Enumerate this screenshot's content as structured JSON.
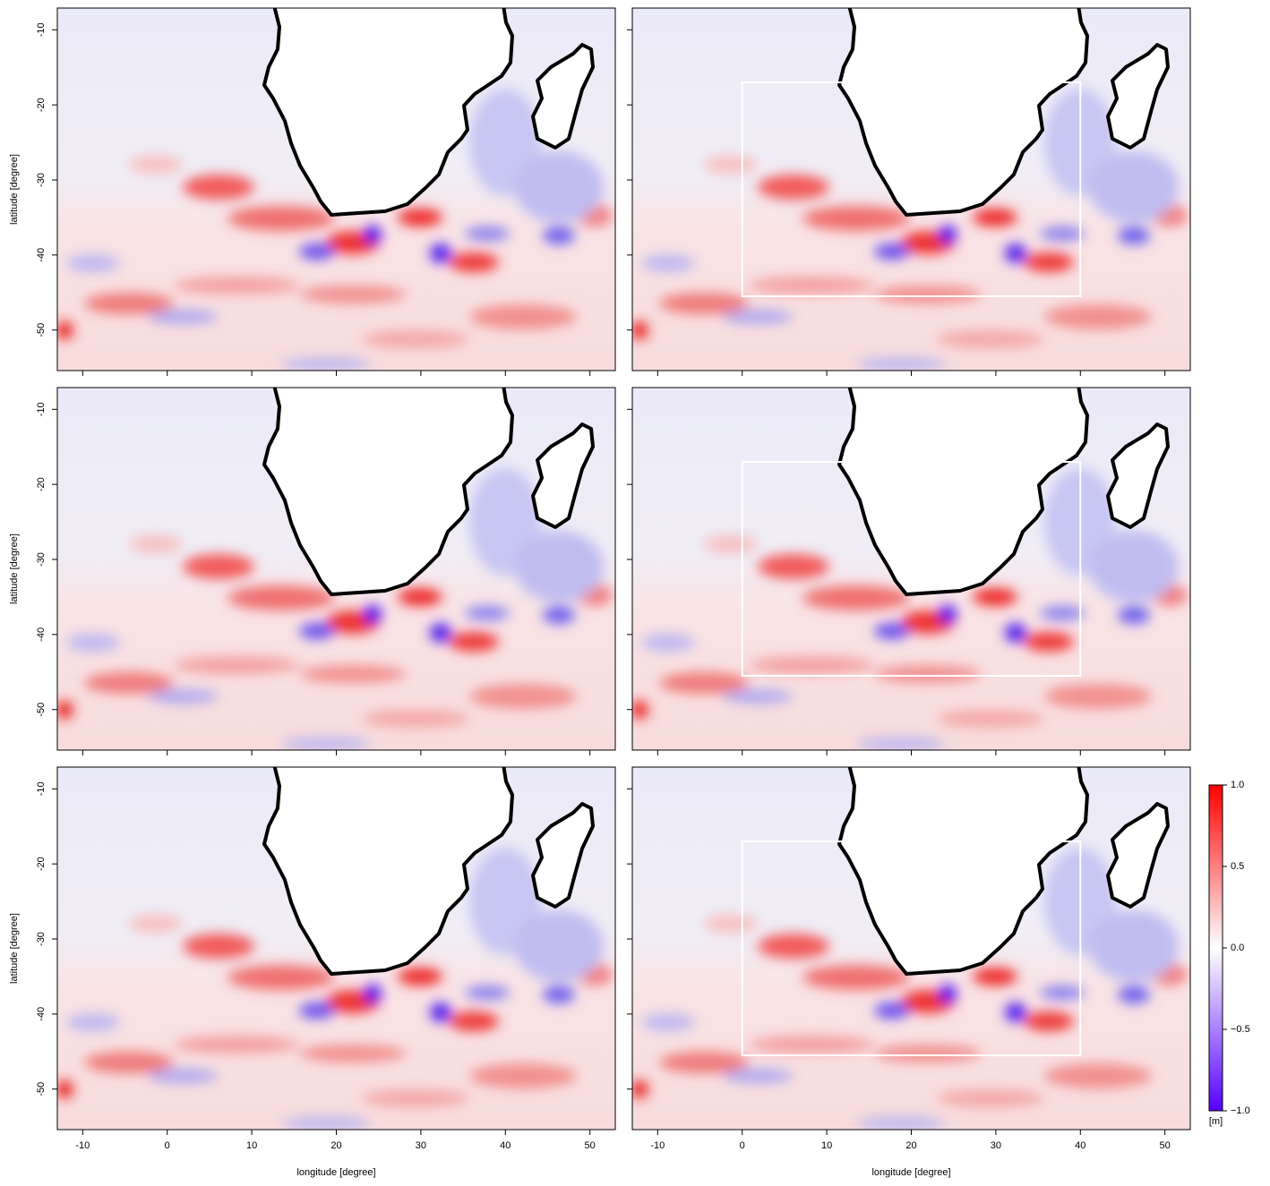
{
  "map": {
    "xlabel": "longitude [degree]",
    "ylabel": "latitude [degree]",
    "xlim": [
      -13,
      53
    ],
    "ylim": [
      -55.4,
      -7.1
    ],
    "xticks": [
      -10,
      0,
      10,
      20,
      30,
      40,
      50
    ],
    "yticks": [
      -10,
      -20,
      -30,
      -40,
      -50
    ],
    "region": {
      "lon": [
        0,
        40
      ],
      "lat": [
        -17,
        -45.5
      ]
    },
    "colorbar": {
      "lim": [
        -1,
        1
      ],
      "ticks": [
        {
          "value": 1,
          "label": "1.0"
        },
        {
          "value": 0.5,
          "label": "0.5"
        },
        {
          "value": 0,
          "label": "0.0"
        },
        {
          "value": -0.5,
          "label": "−0.5"
        },
        {
          "value": -1,
          "label": "−1.0"
        }
      ],
      "unit": "[m]",
      "colors": [
        "#5500ff",
        "#ffffff",
        "#ff0000"
      ]
    }
  }
}
